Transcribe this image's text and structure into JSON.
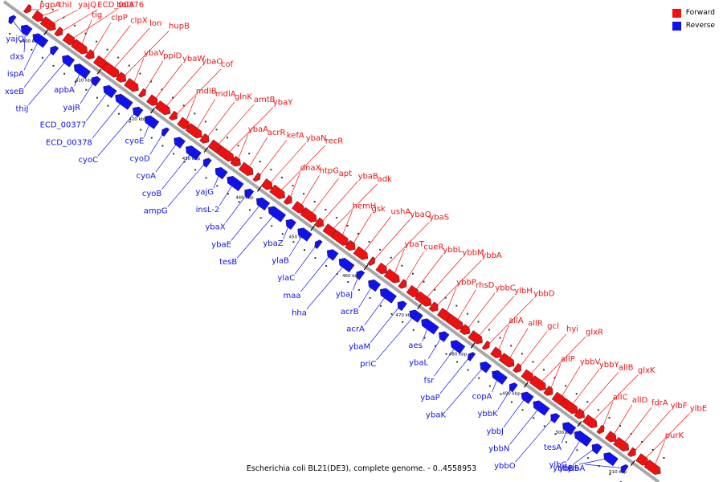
{
  "caption": "Escherichia coli BL21(DE3), complete genome. - 0..4558953",
  "legend": [
    {
      "label": "Forward",
      "color": "#ee1111"
    },
    {
      "label": "Reverse",
      "color": "#1111ee"
    }
  ],
  "colors": {
    "forward": "#ee1111",
    "reverse": "#1111ee",
    "backbone": "#a8a8a8"
  },
  "ticks": [
    "400 kbp",
    "410 kbp",
    "420 kbp",
    "430 kbp",
    "440 kbp",
    "450 kbp",
    "460 kbp",
    "470 kbp",
    "480 kbp",
    "490 kbp",
    "500 kbp",
    "510 kbp"
  ],
  "forward_labels": [
    "pgpA",
    "thiI",
    "yajQ",
    "ECD_00376",
    "bolA",
    "tig",
    "clpP",
    "clpX",
    "lon",
    "hupB",
    "ybaV",
    "ppiD",
    "ybaW",
    "ybaO",
    "cof",
    "mdlB",
    "mdlA",
    "glnK",
    "amtB",
    "ybaY",
    "ybaA",
    "acrR",
    "kefA",
    "ybaN",
    "recR",
    "dnaX",
    "htpG",
    "apt",
    "ybaB",
    "adk",
    "hemH",
    "gsk",
    "ushA",
    "ybaQ",
    "ybaS",
    "ybaT",
    "cueR",
    "ybbL",
    "ybbM",
    "ybbA",
    "ybbP",
    "rhsD",
    "ybbC",
    "ylbH",
    "ybbD",
    "allA",
    "allR",
    "gcl",
    "hyi",
    "glxR",
    "allP",
    "ybbV",
    "ybbY",
    "allB",
    "glxK",
    "allC",
    "allD",
    "fdrA",
    "ylbF",
    "ylbE",
    "purK"
  ],
  "reverse_labels": [
    "yajO",
    "dxs",
    "ispA",
    "xseB",
    "thiJ",
    "apbA",
    "yajR",
    "ECD_00377",
    "ECD_00378",
    "cyoC",
    "cyoE",
    "cyoD",
    "cyoA",
    "cyoB",
    "ampG",
    "yajG",
    "insL-2",
    "ybaX",
    "ybaE",
    "tesB",
    "ybaZ",
    "ylaB",
    "ylaC",
    "maa",
    "hha",
    "ybaJ",
    "acrB",
    "acrA",
    "ybaM",
    "priC",
    "aes",
    "ybaL",
    "fsr",
    "ybaP",
    "ybaK",
    "copA",
    "ybbK",
    "ybbJ",
    "ybbN",
    "ybbO",
    "tesA",
    "ylbG",
    "ybbB",
    "ybbS",
    "ylbA"
  ]
}
